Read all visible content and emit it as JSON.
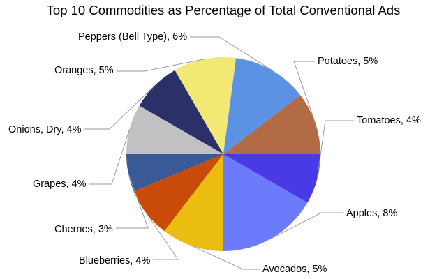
{
  "chart_data": {
    "type": "pie",
    "title": "Top 10 Commodities as Percentage of Total Conventional Ads",
    "slices": [
      {
        "label": "Tomatoes",
        "value": 4,
        "display": "Tomatoes, 4%",
        "color": "#4a3ae6"
      },
      {
        "label": "Apples",
        "value": 8,
        "display": "Apples, 8%",
        "color": "#6b7bfb"
      },
      {
        "label": "Avocados",
        "value": 5,
        "display": "Avocados, 5%",
        "color": "#ecbd11"
      },
      {
        "label": "Blueberries",
        "value": 4,
        "display": "Blueberries, 4%",
        "color": "#c94b0a"
      },
      {
        "label": "Cherries",
        "value": 3,
        "display": "Cherries, 3%",
        "color": "#3a5a97"
      },
      {
        "label": "Grapes",
        "value": 4,
        "display": "Grapes, 4%",
        "color": "#c1c1c3"
      },
      {
        "label": "Onions, Dry",
        "value": 4,
        "display": "Onions, Dry, 4%",
        "color": "#2b3168"
      },
      {
        "label": "Oranges",
        "value": 5,
        "display": "Oranges, 5%",
        "color": "#f2e874"
      },
      {
        "label": "Peppers (Bell Type)",
        "value": 6,
        "display": "Peppers (Bell Type), 6%",
        "color": "#5b92e3"
      },
      {
        "label": "Potatoes",
        "value": 5,
        "display": "Potatoes, 5%",
        "color": "#b36b46"
      }
    ]
  }
}
